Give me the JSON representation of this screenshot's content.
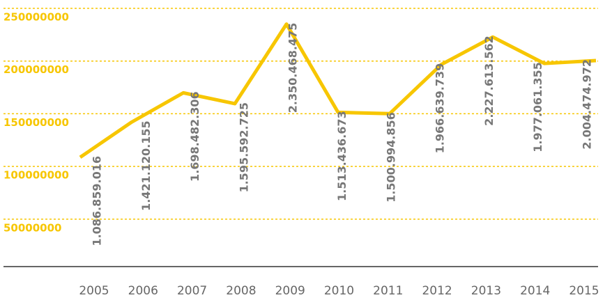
{
  "chart_data": {
    "type": "line",
    "categories": [
      "2005",
      "2006",
      "2007",
      "2008",
      "2009",
      "2010",
      "2011",
      "2012",
      "2013",
      "2014",
      "2015"
    ],
    "series": [
      {
        "name": null,
        "color": "#f7c600",
        "values": [
          108685901.6,
          142112015.5,
          169848230.6,
          159559272.5,
          235046847.5,
          151343667.3,
          150099485.6,
          196663973.9,
          222761356.2,
          197706135.5,
          200447497.2
        ],
        "value_labels": [
          "1.086.859.016",
          "1.421.120.155",
          "1.698.482.306",
          "1.595.592.725",
          "2.350.468.475",
          "1.513.436.673",
          "1.500.994.856",
          "1.966.639.739",
          "2.227.613.562",
          "1.977.061.355",
          "2.004.474.972"
        ]
      }
    ],
    "ylim": [
      5000000,
      250000000
    ],
    "yticks": [
      50000000,
      100000000,
      150000000,
      200000000,
      250000000
    ],
    "grid": true
  }
}
